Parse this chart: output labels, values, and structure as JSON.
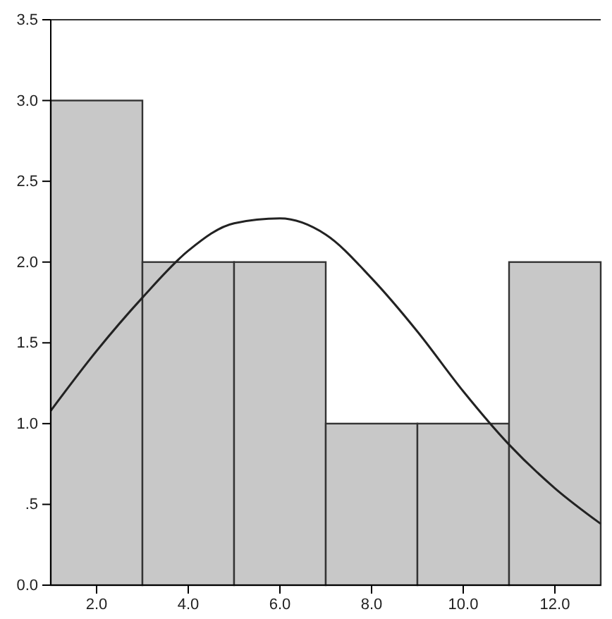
{
  "chart_data": {
    "type": "histogram",
    "xlim": [
      1,
      13
    ],
    "ylim": [
      0,
      3.5
    ],
    "xticks": [
      {
        "value": 2,
        "label": "2.0"
      },
      {
        "value": 4,
        "label": "4.0"
      },
      {
        "value": 6,
        "label": "6.0"
      },
      {
        "value": 8,
        "label": "8.0"
      },
      {
        "value": 10,
        "label": "10.0"
      },
      {
        "value": 12,
        "label": "12.0"
      }
    ],
    "yticks": [
      {
        "value": 0,
        "label": "0.0"
      },
      {
        "value": 0.5,
        "label": ".5"
      },
      {
        "value": 1,
        "label": "1.0"
      },
      {
        "value": 1.5,
        "label": "1.5"
      },
      {
        "value": 2,
        "label": "2.0"
      },
      {
        "value": 2.5,
        "label": "2.5"
      },
      {
        "value": 3,
        "label": "3.0"
      },
      {
        "value": 3.5,
        "label": "3.5"
      }
    ],
    "series": [
      {
        "color": "#c8c8c8",
        "bins": [
          1,
          3,
          5,
          7,
          9,
          11,
          13
        ],
        "values": [
          3,
          2,
          2,
          1,
          1,
          2
        ]
      },
      {
        "type": "line",
        "color": "#222222",
        "x": [
          1,
          2,
          3,
          4,
          5,
          6,
          7,
          8,
          9,
          10,
          11,
          12,
          13
        ],
        "values": [
          1.08,
          1.45,
          1.78,
          2.07,
          2.24,
          2.27,
          2.17,
          1.9,
          1.57,
          1.2,
          0.87,
          0.6,
          0.38
        ]
      }
    ]
  }
}
